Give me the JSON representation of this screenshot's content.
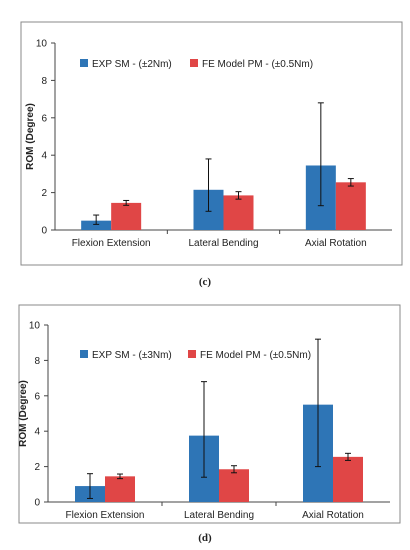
{
  "colors": {
    "exp": "#2e75b6",
    "fe": "#e04646",
    "frame": "#888888",
    "axis": "#444444",
    "text": "#222222"
  },
  "chart_data": [
    {
      "type": "bar",
      "panel_label": "(c)",
      "ylabel": "ROM (Degree)",
      "ylim": [
        0,
        10
      ],
      "yticks": [
        "0",
        "2",
        "4",
        "6",
        "8",
        "10"
      ],
      "categories": [
        "Flexion Extension",
        "Lateral Bending",
        "Axial Rotation"
      ],
      "legend_position": "top-center",
      "series": [
        {
          "name": "EXP SM - (±2Nm)",
          "color": "#2e75b6",
          "values": [
            0.5,
            2.15,
            3.45
          ],
          "err_low": [
            0.3,
            1.0,
            1.3
          ],
          "err_high": [
            0.8,
            3.8,
            6.8
          ]
        },
        {
          "name": "FE Model PM - (±0.5Nm)",
          "color": "#e04646",
          "values": [
            1.45,
            1.85,
            2.55
          ],
          "err_low": [
            1.32,
            1.65,
            2.35
          ],
          "err_high": [
            1.58,
            2.05,
            2.75
          ]
        }
      ]
    },
    {
      "type": "bar",
      "panel_label": "(d)",
      "ylabel": "ROM (Degree)",
      "ylim": [
        0,
        10
      ],
      "yticks": [
        "0",
        "2",
        "4",
        "6",
        "8",
        "10"
      ],
      "categories": [
        "Flexion Extension",
        "Lateral Bending",
        "Axial Rotation"
      ],
      "legend_position": "top-center",
      "series": [
        {
          "name": "EXP SM - (±3Nm)",
          "color": "#2e75b6",
          "values": [
            0.9,
            3.75,
            5.5
          ],
          "err_low": [
            0.2,
            1.4,
            2.0
          ],
          "err_high": [
            1.6,
            6.8,
            9.2
          ]
        },
        {
          "name": "FE Model PM - (±0.5Nm)",
          "color": "#e04646",
          "values": [
            1.45,
            1.85,
            2.55
          ],
          "err_low": [
            1.32,
            1.65,
            2.35
          ],
          "err_high": [
            1.58,
            2.05,
            2.75
          ]
        }
      ]
    }
  ]
}
